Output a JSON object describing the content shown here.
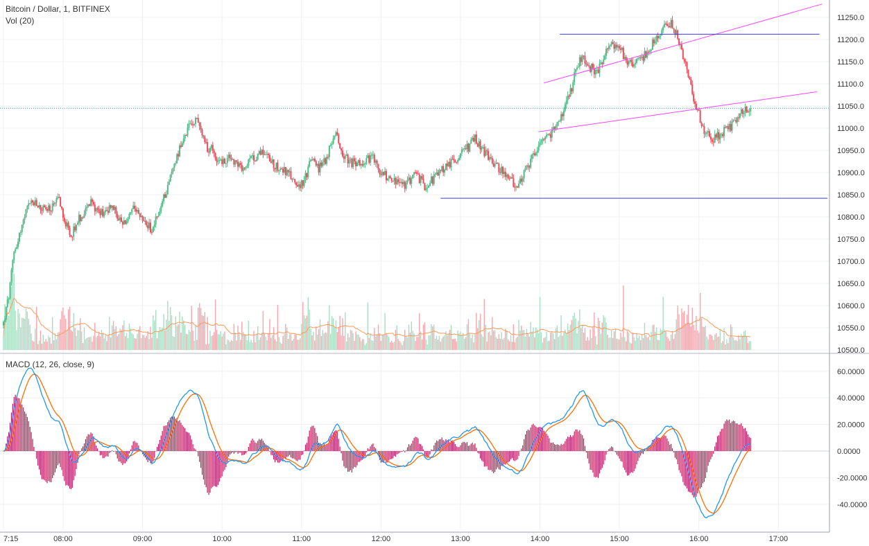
{
  "header": {
    "symbol_title": "Bitcoin / Dollar, 1, BITFINEX",
    "vol_label": "Vol (20)",
    "macd_label": "MACD (12, 26, close, 9)"
  },
  "colors": {
    "up": "#53b987",
    "down": "#eb4d5c",
    "vol_up": "#a9dcc3",
    "vol_down": "#f5a6ae",
    "vol_ma": "#ff9a56",
    "macd_line": "#2196f3",
    "signal_line": "#ff6d00",
    "histogram": "#c2185b",
    "trend_magenta": "#ff44ff",
    "trend_blue": "#3b3bd6",
    "last_price_line": "#26a69a"
  },
  "chart_data": [
    {
      "type": "candlestick",
      "title": "Bitcoin / Dollar, 1, BITFINEX",
      "x_range": [
        "07:15",
        "17:35"
      ],
      "x_ticks": [
        "7:15",
        "08:00",
        "09:00",
        "10:00",
        "11:00",
        "12:00",
        "13:00",
        "14:00",
        "15:00",
        "16:00",
        "17:00"
      ],
      "x_tick_minutes": [
        0,
        45,
        105,
        165,
        225,
        285,
        345,
        405,
        465,
        525,
        585
      ],
      "ylim": [
        10500,
        11260
      ],
      "y_ticks": [
        11250,
        11200,
        11150,
        11100,
        11050,
        11000,
        10950,
        10900,
        10850,
        10800,
        10750,
        10700,
        10650,
        10600,
        10550,
        10500
      ],
      "y_tick_labels": [
        "11250.0",
        "11200.0",
        "11150.0",
        "11100.0",
        "11050.0",
        "11000.0",
        "10950.0",
        "10900.0",
        "10850.0",
        "10800.0",
        "10750.0",
        "10700.0",
        "10650.0",
        "10600.0",
        "10550.0",
        "10500.0"
      ],
      "last_price": 11045,
      "price_path_anchors": [
        [
          0,
          10560
        ],
        [
          4,
          10620
        ],
        [
          8,
          10720
        ],
        [
          14,
          10780
        ],
        [
          20,
          10835
        ],
        [
          28,
          10820
        ],
        [
          36,
          10815
        ],
        [
          42,
          10840
        ],
        [
          50,
          10755
        ],
        [
          58,
          10800
        ],
        [
          66,
          10830
        ],
        [
          74,
          10810
        ],
        [
          82,
          10825
        ],
        [
          90,
          10780
        ],
        [
          98,
          10815
        ],
        [
          106,
          10790
        ],
        [
          112,
          10770
        ],
        [
          118,
          10815
        ],
        [
          124,
          10870
        ],
        [
          130,
          10930
        ],
        [
          138,
          10990
        ],
        [
          146,
          11030
        ],
        [
          152,
          10960
        ],
        [
          158,
          10950
        ],
        [
          164,
          10920
        ],
        [
          172,
          10935
        ],
        [
          180,
          10905
        ],
        [
          188,
          10930
        ],
        [
          196,
          10950
        ],
        [
          204,
          10920
        ],
        [
          212,
          10905
        ],
        [
          220,
          10880
        ],
        [
          226,
          10870
        ],
        [
          232,
          10930
        ],
        [
          238,
          10910
        ],
        [
          244,
          10930
        ],
        [
          250,
          10990
        ],
        [
          256,
          10945
        ],
        [
          262,
          10920
        ],
        [
          270,
          10925
        ],
        [
          278,
          10935
        ],
        [
          284,
          10905
        ],
        [
          290,
          10890
        ],
        [
          296,
          10880
        ],
        [
          304,
          10870
        ],
        [
          310,
          10900
        ],
        [
          318,
          10870
        ],
        [
          326,
          10890
        ],
        [
          334,
          10915
        ],
        [
          342,
          10930
        ],
        [
          350,
          10955
        ],
        [
          356,
          10975
        ],
        [
          362,
          10950
        ],
        [
          368,
          10930
        ],
        [
          374,
          10910
        ],
        [
          380,
          10890
        ],
        [
          388,
          10870
        ],
        [
          396,
          10910
        ],
        [
          402,
          10950
        ],
        [
          410,
          10975
        ],
        [
          416,
          11000
        ],
        [
          422,
          11030
        ],
        [
          428,
          11080
        ],
        [
          432,
          11130
        ],
        [
          436,
          11160
        ],
        [
          442,
          11140
        ],
        [
          448,
          11125
        ],
        [
          454,
          11170
        ],
        [
          460,
          11190
        ],
        [
          466,
          11175
        ],
        [
          472,
          11150
        ],
        [
          478,
          11145
        ],
        [
          484,
          11165
        ],
        [
          490,
          11190
        ],
        [
          496,
          11215
        ],
        [
          502,
          11240
        ],
        [
          506,
          11230
        ],
        [
          510,
          11195
        ],
        [
          514,
          11155
        ],
        [
          518,
          11100
        ],
        [
          522,
          11060
        ],
        [
          526,
          11020
        ],
        [
          530,
          10990
        ],
        [
          536,
          10975
        ],
        [
          542,
          10990
        ],
        [
          548,
          11000
        ],
        [
          554,
          11020
        ],
        [
          560,
          11045
        ],
        [
          564,
          11045
        ]
      ],
      "volume_range": [
        0,
        180
      ],
      "trendlines": [
        {
          "color": "trend_magenta",
          "from": [
            408,
            11102
          ],
          "to": [
            618,
            11280
          ]
        },
        {
          "color": "trend_magenta",
          "from": [
            404,
            10992
          ],
          "to": [
            614,
            11082
          ]
        },
        {
          "color": "trend_blue",
          "from": [
            420,
            11212
          ],
          "to": [
            616,
            11212
          ]
        },
        {
          "color": "trend_blue",
          "from": [
            330,
            10842
          ],
          "to": [
            622,
            10842
          ]
        }
      ]
    },
    {
      "type": "line",
      "title": "MACD (12, 26, close, 9)",
      "ylim": [
        -60,
        70
      ],
      "y_ticks": [
        60,
        40,
        20,
        0,
        -20,
        -40
      ],
      "y_tick_labels": [
        "60.0000",
        "40.0000",
        "20.0000",
        "0.0000",
        "-20.0000",
        "-40.0000"
      ],
      "series": [
        {
          "key": "macd"
        },
        {
          "key": "signal"
        },
        {
          "key": "histogram"
        }
      ]
    }
  ]
}
